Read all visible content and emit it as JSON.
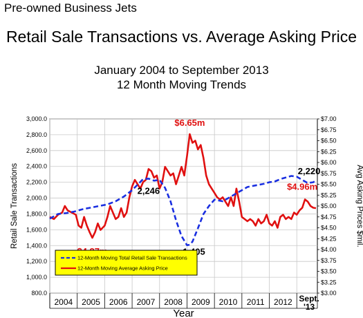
{
  "slide_label": "Pre-owned Business Jets",
  "main_title": "Retail Sale Transactions vs. Average Asking Price",
  "chart_data": {
    "type": "line",
    "title_line1": "January 2004 to September 2013",
    "title_line2": "12 Month Moving Trends",
    "xlabel": "Year",
    "ylabel_left": "Retail Sale Transactions",
    "ylabel_right": "Avg Asking Prices $mil.",
    "ylim_left": [
      800,
      3000
    ],
    "ylim_right": [
      3.0,
      7.0
    ],
    "x_range": [
      2004.0,
      2013.75
    ],
    "yticks_left": [
      "800.0",
      "1,000.0",
      "1,200.0",
      "1,400.0",
      "1,600.0",
      "1,800.0",
      "2,000.0",
      "2,200.0",
      "2,400.0",
      "2,600.0",
      "2,800.0",
      "3,000.0"
    ],
    "yticks_right": [
      "$3.00",
      "$3.25",
      "$3.50",
      "$3.75",
      "$4.00",
      "$4.25",
      "$4.50",
      "$4.75",
      "$5.00",
      "$5.25",
      "$5.50",
      "$5.75",
      "$6.00",
      "$6.25",
      "$6.50",
      "$6.75",
      "$7.00"
    ],
    "year_labels": [
      "2004",
      "2005",
      "2006",
      "2007",
      "2008",
      "2009",
      "2010",
      "2011",
      "2012"
    ],
    "year_label_last_line1": "Sept.",
    "year_label_last_line2": "'13",
    "grid": true,
    "legend_position": "bottom-left",
    "series": [
      {
        "name": "12-Month Moving Total Retail Sale Transactions",
        "axis": "left",
        "color": "#1a2fe0",
        "style": "dashed",
        "x": [
          2004.0,
          2004.3,
          2004.6,
          2004.9,
          2005.2,
          2005.5,
          2005.8,
          2006.1,
          2006.4,
          2006.7,
          2007.0,
          2007.2,
          2007.4,
          2007.6,
          2007.8,
          2008.0,
          2008.2,
          2008.4,
          2008.6,
          2008.8,
          2009.0,
          2009.1,
          2009.2,
          2009.4,
          2009.6,
          2009.8,
          2010.0,
          2010.3,
          2010.6,
          2010.9,
          2011.2,
          2011.5,
          2011.8,
          2012.0,
          2012.2,
          2012.4,
          2012.6,
          2012.8,
          2013.0,
          2013.2,
          2013.4,
          2013.6,
          2013.7
        ],
        "values": [
          1740,
          1800,
          1810,
          1830,
          1860,
          1880,
          1900,
          1920,
          1960,
          2020,
          2100,
          2170,
          2240,
          2246,
          2220,
          2230,
          2130,
          1960,
          1720,
          1520,
          1405,
          1410,
          1450,
          1620,
          1800,
          1900,
          1980,
          1960,
          2020,
          2080,
          2140,
          2160,
          2180,
          2200,
          2210,
          2240,
          2260,
          2280,
          2270,
          2230,
          2190,
          2200,
          2220
        ]
      },
      {
        "name": "12-Month Moving Average Asking Price",
        "axis": "right",
        "color": "#e01010",
        "style": "solid",
        "x": [
          2004.0,
          2004.15,
          2004.3,
          2004.45,
          2004.55,
          2004.65,
          2004.8,
          2004.95,
          2005.05,
          2005.15,
          2005.25,
          2005.35,
          2005.45,
          2005.55,
          2005.65,
          2005.75,
          2005.85,
          2006.0,
          2006.1,
          2006.2,
          2006.3,
          2006.4,
          2006.5,
          2006.6,
          2006.7,
          2006.8,
          2006.9,
          2007.0,
          2007.1,
          2007.2,
          2007.3,
          2007.4,
          2007.5,
          2007.6,
          2007.7,
          2007.8,
          2007.9,
          2008.0,
          2008.1,
          2008.2,
          2008.3,
          2008.4,
          2008.5,
          2008.6,
          2008.7,
          2008.8,
          2008.9,
          2009.0,
          2009.1,
          2009.2,
          2009.3,
          2009.4,
          2009.5,
          2009.6,
          2009.7,
          2009.8,
          2009.9,
          2010.0,
          2010.1,
          2010.2,
          2010.3,
          2010.4,
          2010.5,
          2010.6,
          2010.7,
          2010.8,
          2010.9,
          2011.0,
          2011.1,
          2011.2,
          2011.3,
          2011.4,
          2011.5,
          2011.6,
          2011.7,
          2011.8,
          2011.9,
          2012.0,
          2012.1,
          2012.2,
          2012.3,
          2012.4,
          2012.5,
          2012.6,
          2012.7,
          2012.8,
          2012.9,
          2013.0,
          2013.1,
          2013.2,
          2013.3,
          2013.4,
          2013.5,
          2013.6,
          2013.7
        ],
        "values": [
          4.75,
          4.7,
          4.8,
          4.85,
          5.0,
          4.9,
          4.85,
          4.8,
          4.55,
          4.5,
          4.75,
          4.55,
          4.4,
          4.27,
          4.4,
          4.6,
          4.45,
          4.55,
          4.75,
          5.0,
          4.85,
          4.7,
          4.75,
          4.95,
          4.75,
          4.85,
          5.2,
          5.45,
          5.6,
          5.5,
          5.4,
          5.55,
          5.6,
          5.85,
          5.8,
          5.65,
          5.7,
          5.4,
          5.55,
          5.9,
          5.8,
          5.7,
          5.75,
          5.5,
          5.7,
          5.9,
          5.7,
          6.15,
          6.65,
          6.45,
          6.5,
          6.3,
          6.4,
          6.1,
          5.7,
          5.5,
          5.4,
          5.3,
          5.2,
          5.15,
          5.2,
          5.1,
          5.0,
          5.2,
          5.0,
          5.4,
          5.1,
          4.75,
          4.7,
          4.65,
          4.7,
          4.65,
          4.55,
          4.7,
          4.6,
          4.65,
          4.8,
          4.6,
          4.55,
          4.65,
          4.5,
          4.75,
          4.8,
          4.7,
          4.75,
          4.7,
          4.85,
          4.8,
          4.9,
          4.96,
          5.15,
          5.1,
          5.0,
          4.96,
          4.95
        ]
      }
    ],
    "annotations": [
      {
        "text": "$6.65m",
        "x": 2009.1,
        "series": "price",
        "color": "#e01010"
      },
      {
        "text": "$4.27m",
        "x": 2005.55,
        "series": "price",
        "color": "#e01010"
      },
      {
        "text": "$4.96m",
        "x": 2013.3,
        "series": "price",
        "color": "#e01010"
      },
      {
        "text": "2,246",
        "x": 2007.6,
        "series": "transactions",
        "color": "#000000"
      },
      {
        "text": "1,405",
        "x": 2009.0,
        "series": "transactions",
        "color": "#000000"
      },
      {
        "text": "2,220",
        "x": 2013.5,
        "series": "transactions",
        "color": "#000000"
      }
    ],
    "legend_bg": "#ffff00"
  }
}
